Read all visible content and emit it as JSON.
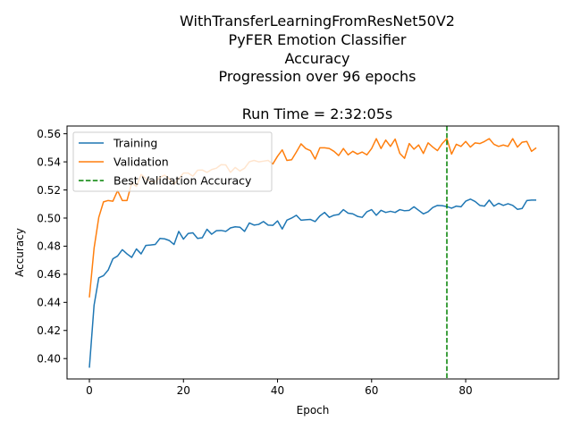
{
  "chart_data": {
    "type": "line",
    "title_lines": [
      "WithTransferLearningFromResNet50V2",
      "PyFER Emotion Classifier",
      "Accuracy",
      "Progression over 96 epochs"
    ],
    "subtitle": "Run Time = 2:32:05s",
    "xlabel": "Epoch",
    "ylabel": "Accuracy",
    "xlim": [
      -4.75,
      99.75
    ],
    "ylim": [
      0.3855,
      0.5655
    ],
    "xticks": [
      0,
      20,
      40,
      60,
      80
    ],
    "yticks": [
      0.4,
      0.42,
      0.44,
      0.46,
      0.48,
      0.5,
      0.52,
      0.54,
      0.56
    ],
    "grid": false,
    "legend_position": "top-left",
    "series": [
      {
        "name": "Training",
        "color": "#1f77b4",
        "values": [
          0.3935,
          0.438,
          0.4575,
          0.459,
          0.463,
          0.471,
          0.473,
          0.4775,
          0.4745,
          0.472,
          0.478,
          0.4745,
          0.4805,
          0.4808,
          0.4812,
          0.4855,
          0.4852,
          0.484,
          0.4812,
          0.4905,
          0.485,
          0.489,
          0.4895,
          0.4855,
          0.486,
          0.492,
          0.4885,
          0.491,
          0.4912,
          0.4905,
          0.493,
          0.4938,
          0.4935,
          0.4905,
          0.4965,
          0.495,
          0.4955,
          0.4975,
          0.495,
          0.4948,
          0.498,
          0.4922,
          0.4985,
          0.5,
          0.502,
          0.4985,
          0.4988,
          0.499,
          0.4975,
          0.5015,
          0.504,
          0.5005,
          0.502,
          0.5025,
          0.506,
          0.5035,
          0.503,
          0.5012,
          0.5005,
          0.5045,
          0.506,
          0.502,
          0.5055,
          0.504,
          0.5048,
          0.504,
          0.506,
          0.5052,
          0.5055,
          0.508,
          0.5055,
          0.503,
          0.5045,
          0.5075,
          0.509,
          0.5088,
          0.5082,
          0.507,
          0.5085,
          0.508,
          0.512,
          0.5135,
          0.5118,
          0.509,
          0.5085,
          0.5128,
          0.5085,
          0.5105,
          0.509,
          0.5102,
          0.509,
          0.5062,
          0.5068,
          0.5125,
          0.5128,
          0.5128
        ]
      },
      {
        "name": "Validation",
        "color": "#ff7f0e",
        "values": [
          0.4435,
          0.4785,
          0.5005,
          0.5115,
          0.5125,
          0.512,
          0.5195,
          0.5125,
          0.5125,
          0.525,
          0.5225,
          0.531,
          0.528,
          0.526,
          0.5255,
          0.529,
          0.5305,
          0.528,
          0.524,
          0.528,
          0.532,
          0.532,
          0.5298,
          0.534,
          0.5342,
          0.5325,
          0.5345,
          0.5355,
          0.538,
          0.5378,
          0.5325,
          0.536,
          0.5335,
          0.5355,
          0.54,
          0.541,
          0.54,
          0.5405,
          0.541,
          0.5385,
          0.544,
          0.5485,
          0.541,
          0.5415,
          0.547,
          0.5528,
          0.5495,
          0.548,
          0.542,
          0.55,
          0.55,
          0.5495,
          0.5475,
          0.5445,
          0.5495,
          0.545,
          0.5475,
          0.5455,
          0.547,
          0.545,
          0.5495,
          0.5565,
          0.5495,
          0.5555,
          0.551,
          0.5562,
          0.546,
          0.5425,
          0.553,
          0.549,
          0.552,
          0.546,
          0.5535,
          0.5505,
          0.548,
          0.553,
          0.5565,
          0.5455,
          0.5525,
          0.551,
          0.5545,
          0.5505,
          0.5535,
          0.553,
          0.5545,
          0.5565,
          0.5525,
          0.551,
          0.552,
          0.551,
          0.5565,
          0.5505,
          0.554,
          0.5545,
          0.5475,
          0.55
        ]
      }
    ],
    "reference_lines": [
      {
        "name": "Best Validation Accuracy",
        "orientation": "vertical",
        "x": 76,
        "color": "#008000",
        "style": "dashed"
      }
    ]
  }
}
